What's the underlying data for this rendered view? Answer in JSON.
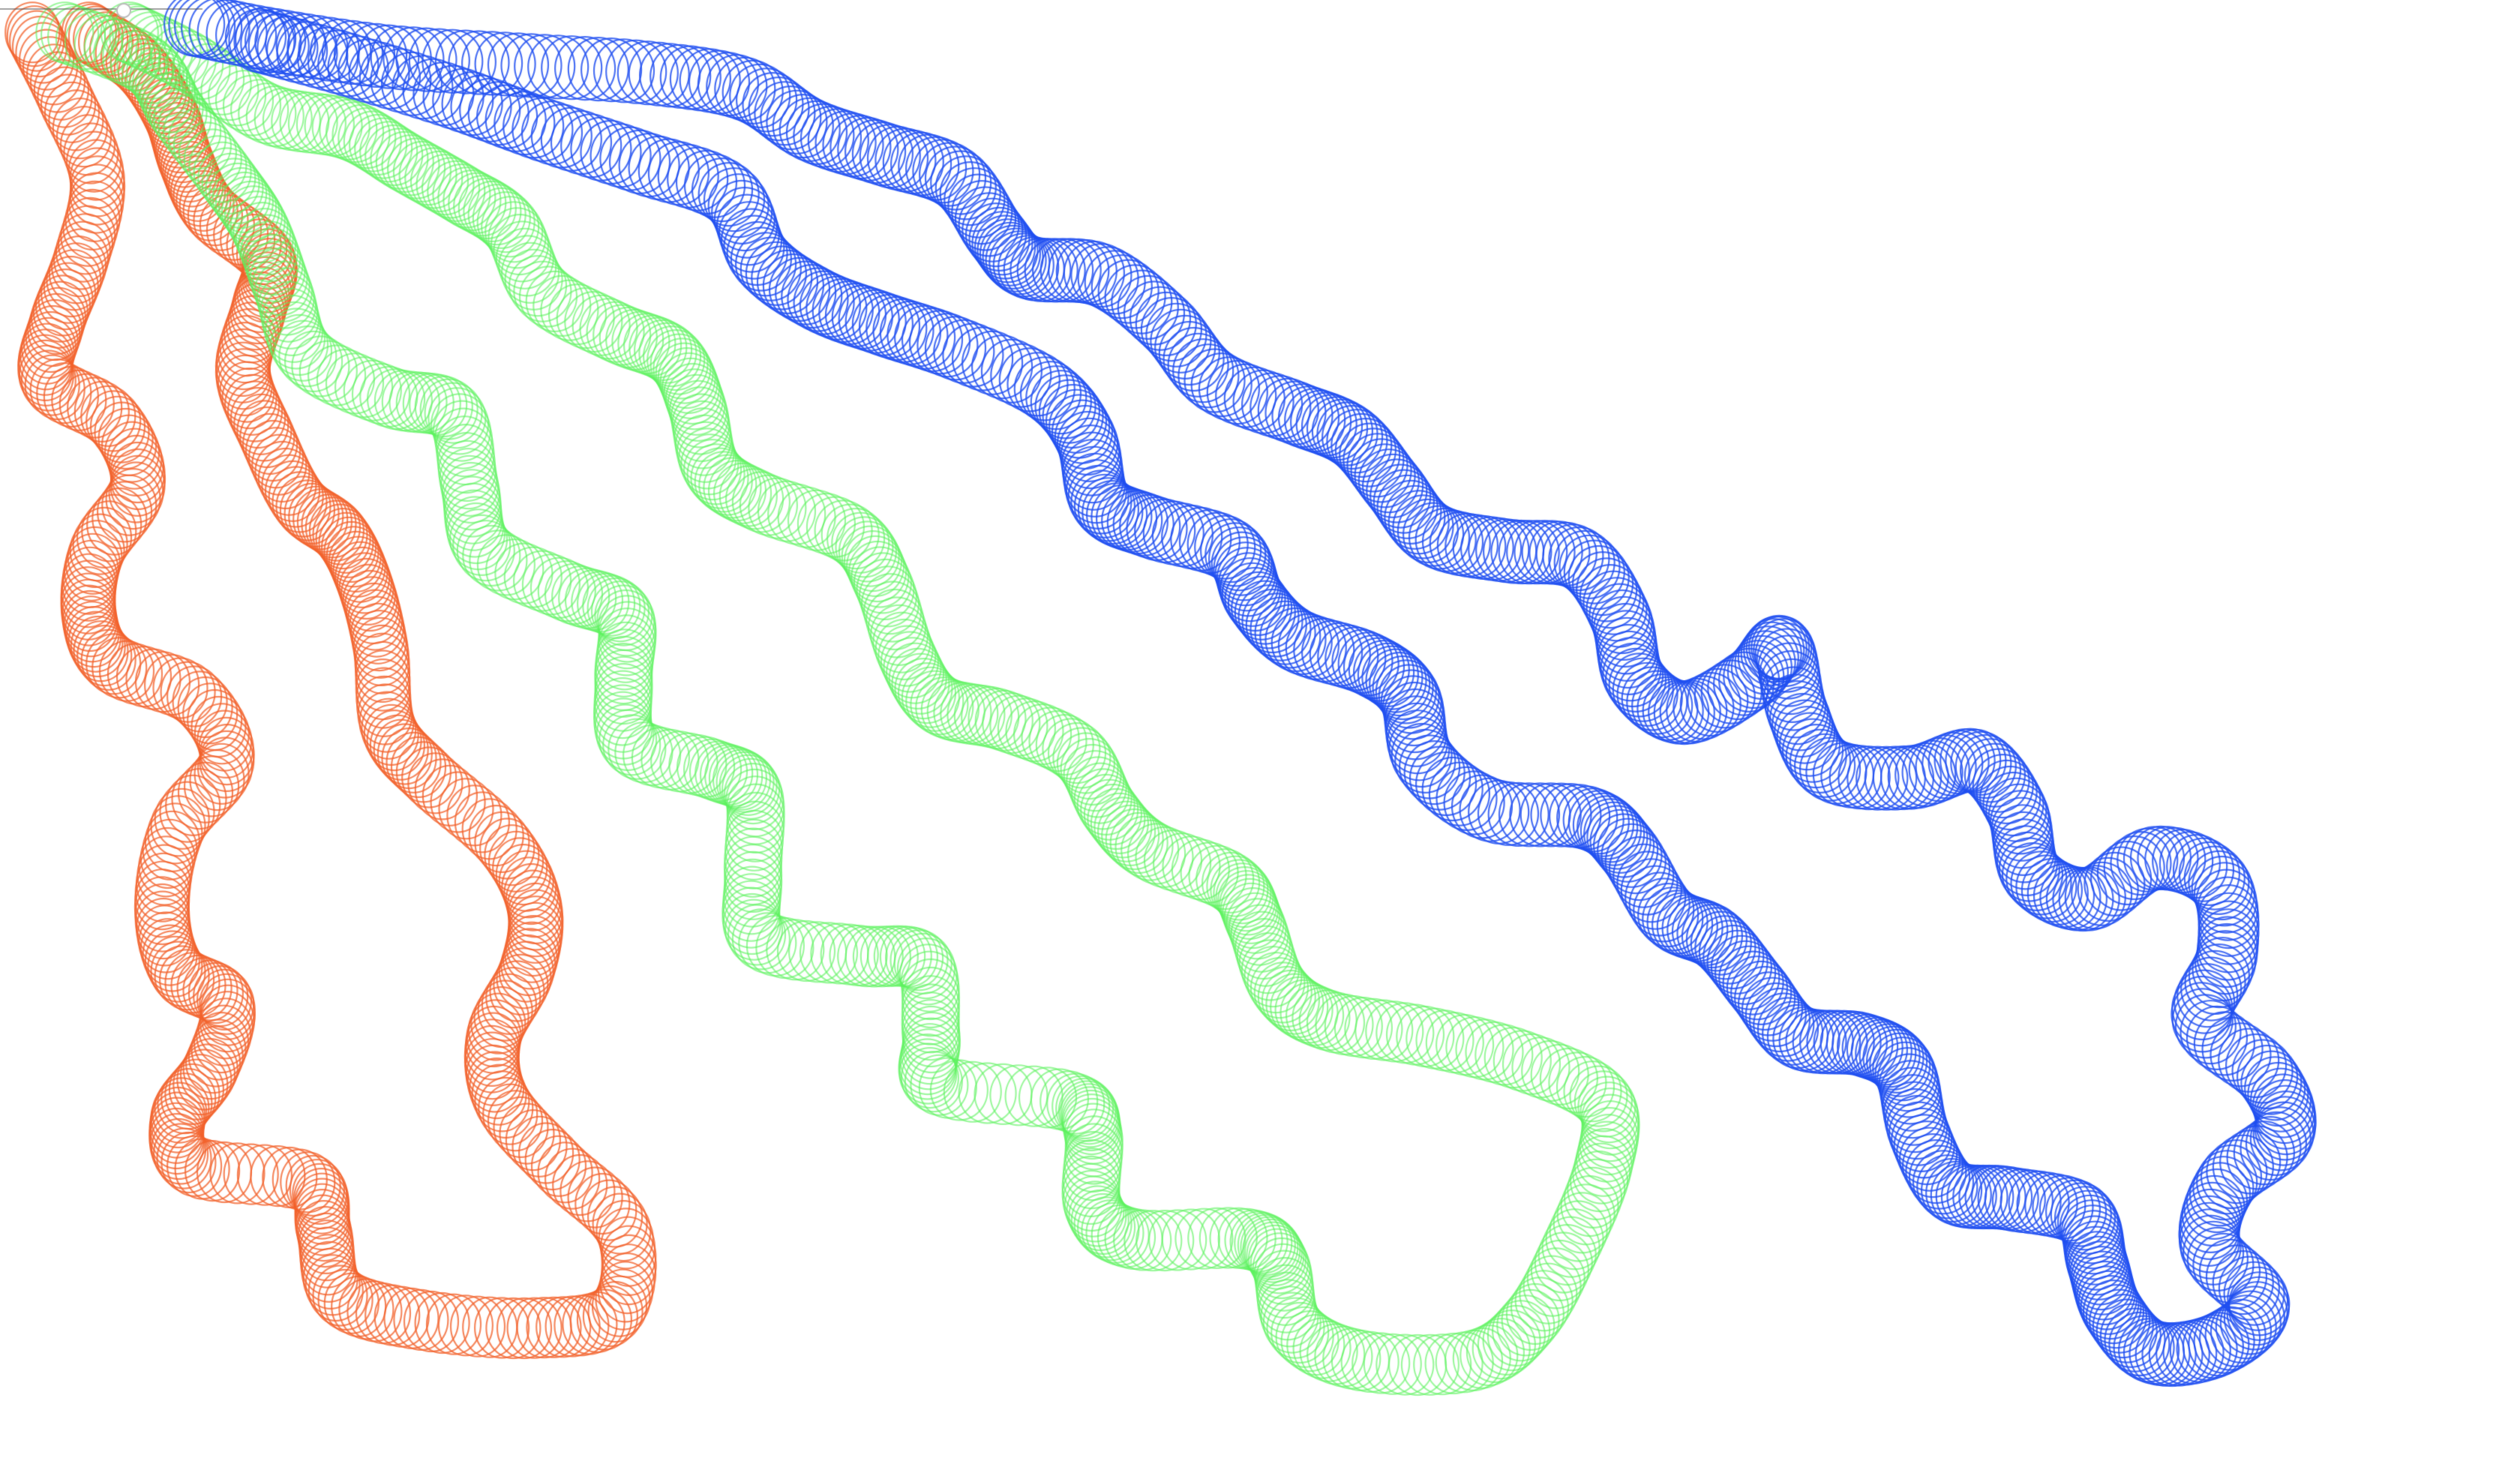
{
  "app": {
    "title": ""
  },
  "colors": {
    "background": "#ffffff",
    "orange": "#f2602a",
    "green": "#5cf25e",
    "blue": "#1e4ef0",
    "handle": "#ffffff"
  },
  "icons": {
    "top_left_handle": "window-resize-handle"
  },
  "artwork": {
    "description_hidden": true,
    "strokes": [
      {
        "id": "orange-loop",
        "color_key": "orange"
      },
      {
        "id": "green-loop",
        "color_key": "green"
      },
      {
        "id": "blue-loop",
        "color_key": "blue"
      }
    ]
  }
}
